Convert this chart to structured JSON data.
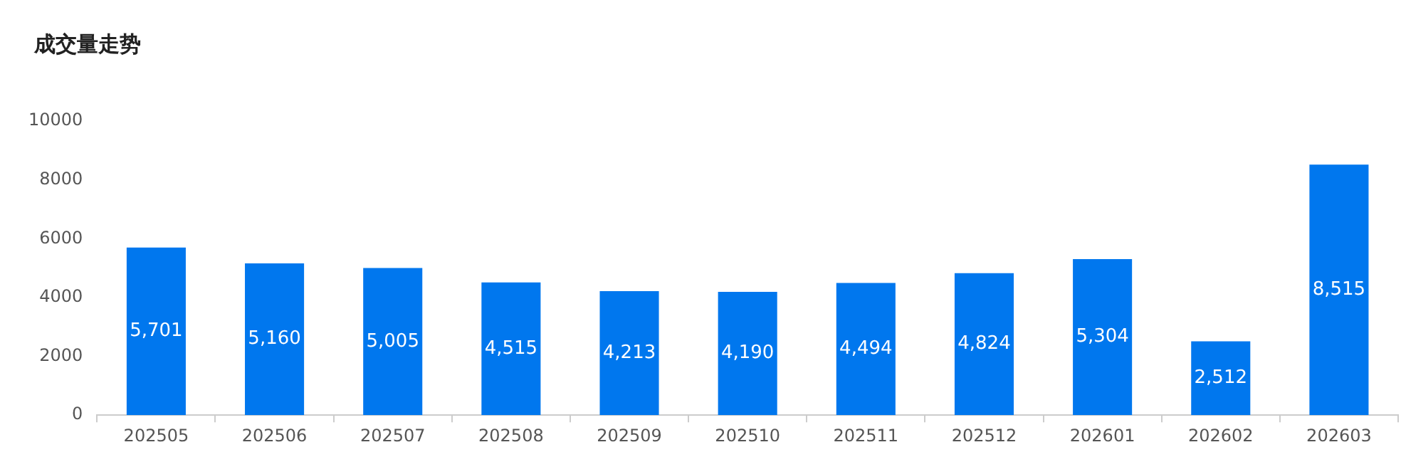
{
  "chart_data": {
    "type": "bar",
    "title": "成交量走势",
    "categories": [
      "202505",
      "202506",
      "202507",
      "202508",
      "202509",
      "202510",
      "202511",
      "202512",
      "202601",
      "202602",
      "202603"
    ],
    "values": [
      5701,
      5160,
      5005,
      4515,
      4213,
      4190,
      4494,
      4824,
      5304,
      2512,
      8515
    ],
    "value_labels": [
      "5,701",
      "5,160",
      "5,005",
      "4,515",
      "4,213",
      "4,190",
      "4,494",
      "4,824",
      "5,304",
      "2,512",
      "8,515"
    ],
    "color": "#0077ee",
    "ylim": [
      0,
      10000
    ],
    "yticks": [
      0,
      2000,
      4000,
      6000,
      8000,
      10000
    ],
    "grid": false,
    "legend": false
  }
}
